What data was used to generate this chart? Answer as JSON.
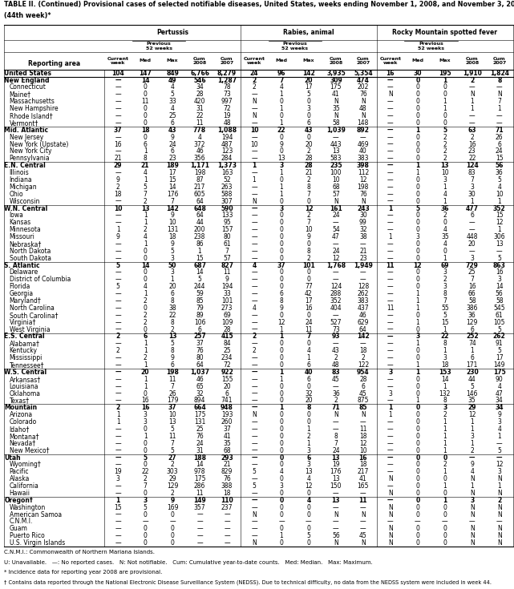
{
  "title_line1": "TABLE II. (Continued) Provisional cases of selected notifiable diseases, United States, weeks ending November 1, 2008, and November 3, 2007",
  "title_line2": "(44th week)*",
  "diseases": [
    "Pertussis",
    "Rabies, animal",
    "Rocky Mountain spotted fever"
  ],
  "rows": [
    [
      "United States",
      "104",
      "147",
      "849",
      "6,766",
      "8,279",
      "24",
      "96",
      "142",
      "3,935",
      "5,354",
      "16",
      "30",
      "195",
      "1,910",
      "1,824"
    ],
    [
      "New England",
      "—",
      "14",
      "49",
      "546",
      "1,287",
      "2",
      "7",
      "20",
      "309",
      "474",
      "—",
      "0",
      "1",
      "2",
      "8"
    ],
    [
      "Connecticut",
      "—",
      "0",
      "4",
      "34",
      "78",
      "2",
      "4",
      "17",
      "175",
      "202",
      "—",
      "0",
      "0",
      "—",
      "—"
    ],
    [
      "Maine†",
      "—",
      "0",
      "5",
      "28",
      "73",
      "—",
      "1",
      "5",
      "41",
      "76",
      "N",
      "0",
      "0",
      "N",
      "N"
    ],
    [
      "Massachusetts",
      "—",
      "11",
      "33",
      "420",
      "997",
      "N",
      "0",
      "0",
      "N",
      "N",
      "—",
      "0",
      "1",
      "1",
      "7"
    ],
    [
      "New Hampshire",
      "—",
      "0",
      "4",
      "31",
      "72",
      "—",
      "1",
      "3",
      "35",
      "48",
      "—",
      "0",
      "1",
      "1",
      "1"
    ],
    [
      "Rhode Island†",
      "—",
      "0",
      "25",
      "22",
      "19",
      "N",
      "0",
      "0",
      "N",
      "N",
      "—",
      "0",
      "0",
      "—",
      "—"
    ],
    [
      "Vermont†",
      "—",
      "0",
      "6",
      "11",
      "48",
      "—",
      "1",
      "6",
      "58",
      "148",
      "—",
      "0",
      "0",
      "—",
      "—"
    ],
    [
      "Mid. Atlantic",
      "37",
      "18",
      "43",
      "778",
      "1,088",
      "10",
      "22",
      "43",
      "1,039",
      "892",
      "—",
      "1",
      "5",
      "63",
      "71"
    ],
    [
      "New Jersey",
      "—",
      "0",
      "9",
      "4",
      "194",
      "—",
      "0",
      "0",
      "—",
      "—",
      "—",
      "0",
      "2",
      "2",
      "26"
    ],
    [
      "New York (Upstate)",
      "16",
      "6",
      "24",
      "372",
      "487",
      "10",
      "9",
      "20",
      "443",
      "469",
      "—",
      "0",
      "2",
      "16",
      "6"
    ],
    [
      "New York City",
      "—",
      "1",
      "6",
      "46",
      "123",
      "—",
      "0",
      "2",
      "13",
      "40",
      "—",
      "0",
      "2",
      "23",
      "24"
    ],
    [
      "Pennsylvania",
      "21",
      "8",
      "23",
      "356",
      "284",
      "—",
      "13",
      "28",
      "583",
      "383",
      "—",
      "0",
      "2",
      "22",
      "15"
    ],
    [
      "E.N. Central",
      "29",
      "21",
      "189",
      "1,171",
      "1,373",
      "1",
      "3",
      "28",
      "235",
      "398",
      "—",
      "1",
      "13",
      "124",
      "56"
    ],
    [
      "Illinois",
      "—",
      "4",
      "17",
      "198",
      "163",
      "—",
      "1",
      "21",
      "100",
      "112",
      "—",
      "1",
      "10",
      "83",
      "36"
    ],
    [
      "Indiana",
      "9",
      "1",
      "15",
      "87",
      "52",
      "1",
      "0",
      "2",
      "10",
      "12",
      "—",
      "0",
      "3",
      "7",
      "5"
    ],
    [
      "Michigan",
      "2",
      "5",
      "14",
      "217",
      "263",
      "—",
      "1",
      "8",
      "68",
      "198",
      "—",
      "0",
      "1",
      "3",
      "4"
    ],
    [
      "Ohio",
      "18",
      "7",
      "176",
      "605",
      "588",
      "—",
      "1",
      "7",
      "57",
      "76",
      "—",
      "0",
      "4",
      "30",
      "10"
    ],
    [
      "Wisconsin",
      "—",
      "2",
      "7",
      "64",
      "307",
      "N",
      "0",
      "0",
      "N",
      "N",
      "—",
      "0",
      "1",
      "1",
      "1"
    ],
    [
      "W.N. Central",
      "10",
      "13",
      "142",
      "648",
      "590",
      "—",
      "3",
      "12",
      "161",
      "243",
      "1",
      "5",
      "36",
      "477",
      "352"
    ],
    [
      "Iowa",
      "—",
      "1",
      "9",
      "64",
      "133",
      "—",
      "0",
      "2",
      "24",
      "30",
      "—",
      "0",
      "2",
      "6",
      "15"
    ],
    [
      "Kansas",
      "—",
      "1",
      "10",
      "44",
      "95",
      "—",
      "0",
      "7",
      "—",
      "99",
      "—",
      "0",
      "0",
      "—",
      "12"
    ],
    [
      "Minnesota",
      "1",
      "2",
      "131",
      "200",
      "157",
      "—",
      "0",
      "10",
      "54",
      "32",
      "—",
      "0",
      "4",
      "—",
      "1"
    ],
    [
      "Missouri",
      "9",
      "4",
      "18",
      "238",
      "80",
      "—",
      "0",
      "9",
      "47",
      "38",
      "1",
      "3",
      "35",
      "448",
      "306"
    ],
    [
      "Nebraska†",
      "—",
      "1",
      "9",
      "86",
      "61",
      "—",
      "0",
      "0",
      "—",
      "—",
      "—",
      "0",
      "4",
      "20",
      "13"
    ],
    [
      "North Dakota",
      "—",
      "0",
      "5",
      "1",
      "7",
      "—",
      "0",
      "8",
      "24",
      "21",
      "—",
      "0",
      "0",
      "—",
      "—"
    ],
    [
      "South Dakota",
      "—",
      "0",
      "3",
      "15",
      "57",
      "—",
      "0",
      "2",
      "12",
      "23",
      "—",
      "0",
      "1",
      "3",
      "5"
    ],
    [
      "S. Atlantic",
      "5",
      "14",
      "50",
      "687",
      "827",
      "4",
      "37",
      "101",
      "1,768",
      "1,949",
      "11",
      "12",
      "69",
      "729",
      "863"
    ],
    [
      "Delaware",
      "—",
      "0",
      "3",
      "14",
      "11",
      "—",
      "0",
      "0",
      "—",
      "—",
      "—",
      "0",
      "3",
      "25",
      "16"
    ],
    [
      "District of Columbia",
      "—",
      "0",
      "1",
      "5",
      "9",
      "—",
      "0",
      "0",
      "—",
      "—",
      "—",
      "0",
      "2",
      "7",
      "3"
    ],
    [
      "Florida",
      "5",
      "4",
      "20",
      "244",
      "194",
      "—",
      "0",
      "77",
      "124",
      "128",
      "—",
      "0",
      "3",
      "16",
      "14"
    ],
    [
      "Georgia",
      "—",
      "1",
      "6",
      "59",
      "33",
      "—",
      "6",
      "42",
      "288",
      "262",
      "—",
      "1",
      "8",
      "66",
      "56"
    ],
    [
      "Maryland†",
      "—",
      "2",
      "8",
      "85",
      "101",
      "—",
      "8",
      "17",
      "352",
      "383",
      "—",
      "1",
      "7",
      "58",
      "58"
    ],
    [
      "North Carolina",
      "—",
      "0",
      "38",
      "79",
      "273",
      "4",
      "9",
      "16",
      "404",
      "437",
      "11",
      "1",
      "55",
      "386",
      "545"
    ],
    [
      "South Carolina†",
      "—",
      "2",
      "22",
      "89",
      "69",
      "—",
      "0",
      "0",
      "—",
      "46",
      "—",
      "0",
      "5",
      "36",
      "61"
    ],
    [
      "Virginia†",
      "—",
      "2",
      "8",
      "106",
      "109",
      "—",
      "12",
      "24",
      "527",
      "629",
      "—",
      "1",
      "15",
      "129",
      "105"
    ],
    [
      "West Virginia",
      "—",
      "0",
      "2",
      "6",
      "28",
      "—",
      "1",
      "11",
      "73",
      "64",
      "—",
      "0",
      "1",
      "6",
      "5"
    ],
    [
      "E.S. Central",
      "2",
      "6",
      "13",
      "257",
      "415",
      "2",
      "1",
      "7",
      "93",
      "142",
      "—",
      "3",
      "22",
      "252",
      "262"
    ],
    [
      "Alabama†",
      "—",
      "1",
      "5",
      "37",
      "84",
      "—",
      "0",
      "0",
      "—",
      "—",
      "—",
      "1",
      "8",
      "74",
      "91"
    ],
    [
      "Kentucky",
      "2",
      "1",
      "8",
      "76",
      "25",
      "2",
      "0",
      "4",
      "43",
      "18",
      "—",
      "0",
      "1",
      "1",
      "5"
    ],
    [
      "Mississippi",
      "—",
      "2",
      "9",
      "80",
      "234",
      "—",
      "0",
      "1",
      "2",
      "2",
      "—",
      "0",
      "3",
      "6",
      "17"
    ],
    [
      "Tennessee†",
      "—",
      "1",
      "6",
      "64",
      "72",
      "—",
      "0",
      "6",
      "48",
      "122",
      "—",
      "1",
      "18",
      "171",
      "149"
    ],
    [
      "W.S. Central",
      "—",
      "20",
      "198",
      "1,037",
      "922",
      "—",
      "1",
      "40",
      "83",
      "954",
      "3",
      "1",
      "153",
      "230",
      "175"
    ],
    [
      "Arkansas†",
      "—",
      "1",
      "11",
      "46",
      "155",
      "—",
      "1",
      "6",
      "45",
      "28",
      "—",
      "0",
      "14",
      "44",
      "90"
    ],
    [
      "Louisiana",
      "—",
      "1",
      "7",
      "65",
      "20",
      "—",
      "0",
      "0",
      "—",
      "6",
      "—",
      "0",
      "1",
      "5",
      "4"
    ],
    [
      "Oklahoma",
      "—",
      "0",
      "26",
      "32",
      "6",
      "—",
      "0",
      "32",
      "36",
      "45",
      "3",
      "0",
      "132",
      "146",
      "47"
    ],
    [
      "Texas†",
      "—",
      "16",
      "179",
      "894",
      "741",
      "—",
      "0",
      "20",
      "2",
      "875",
      "—",
      "1",
      "8",
      "35",
      "34"
    ],
    [
      "Mountain",
      "2",
      "16",
      "37",
      "664",
      "948",
      "—",
      "1",
      "8",
      "71",
      "85",
      "1",
      "0",
      "3",
      "29",
      "34"
    ],
    [
      "Arizona",
      "1",
      "3",
      "10",
      "175",
      "193",
      "N",
      "0",
      "0",
      "N",
      "N",
      "1",
      "0",
      "2",
      "12",
      "9"
    ],
    [
      "Colorado",
      "1",
      "3",
      "13",
      "131",
      "260",
      "—",
      "0",
      "0",
      "—",
      "—",
      "—",
      "0",
      "1",
      "1",
      "3"
    ],
    [
      "Idaho†",
      "—",
      "0",
      "5",
      "25",
      "37",
      "—",
      "0",
      "1",
      "—",
      "11",
      "—",
      "0",
      "1",
      "1",
      "4"
    ],
    [
      "Montana†",
      "—",
      "1",
      "11",
      "76",
      "41",
      "—",
      "0",
      "2",
      "8",
      "18",
      "—",
      "0",
      "1",
      "3",
      "1"
    ],
    [
      "Nevada†",
      "—",
      "0",
      "7",
      "24",
      "35",
      "—",
      "0",
      "1",
      "7",
      "12",
      "—",
      "0",
      "1",
      "1",
      "—"
    ],
    [
      "New Mexico†",
      "—",
      "0",
      "5",
      "31",
      "68",
      "—",
      "0",
      "3",
      "24",
      "10",
      "—",
      "0",
      "1",
      "2",
      "5"
    ],
    [
      "Utah",
      "—",
      "5",
      "27",
      "188",
      "293",
      "—",
      "0",
      "6",
      "13",
      "16",
      "—",
      "0",
      "0",
      "—",
      "—"
    ],
    [
      "Wyoming†",
      "—",
      "0",
      "2",
      "14",
      "21",
      "—",
      "0",
      "3",
      "19",
      "18",
      "—",
      "0",
      "2",
      "9",
      "12"
    ],
    [
      "Pacific",
      "19",
      "22",
      "303",
      "978",
      "829",
      "5",
      "4",
      "13",
      "176",
      "217",
      "—",
      "0",
      "1",
      "4",
      "3"
    ],
    [
      "Alaska",
      "3",
      "2",
      "29",
      "175",
      "76",
      "—",
      "0",
      "4",
      "13",
      "41",
      "N",
      "0",
      "0",
      "N",
      "N"
    ],
    [
      "California",
      "—",
      "7",
      "129",
      "286",
      "388",
      "5",
      "3",
      "12",
      "150",
      "165",
      "—",
      "0",
      "1",
      "1",
      "1"
    ],
    [
      "Hawaii",
      "—",
      "0",
      "2",
      "11",
      "18",
      "—",
      "0",
      "0",
      "—",
      "—",
      "N",
      "0",
      "0",
      "N",
      "N"
    ],
    [
      "Oregon†",
      "1",
      "3",
      "9",
      "149",
      "110",
      "—",
      "0",
      "4",
      "13",
      "11",
      "—",
      "0",
      "1",
      "3",
      "2"
    ],
    [
      "Washington",
      "15",
      "5",
      "169",
      "357",
      "237",
      "—",
      "0",
      "0",
      "—",
      "—",
      "N",
      "0",
      "0",
      "N",
      "N"
    ],
    [
      "American Samoa",
      "—",
      "0",
      "0",
      "—",
      "—",
      "N",
      "0",
      "0",
      "N",
      "N",
      "N",
      "0",
      "0",
      "N",
      "N"
    ],
    [
      "C.N.M.I.",
      "—",
      "—",
      "—",
      "—",
      "—",
      "—",
      "—",
      "—",
      "—",
      "—",
      "—",
      "—",
      "—",
      "—",
      "—"
    ],
    [
      "Guam",
      "—",
      "0",
      "0",
      "—",
      "—",
      "—",
      "0",
      "0",
      "—",
      "—",
      "N",
      "0",
      "0",
      "N",
      "N"
    ],
    [
      "Puerto Rico",
      "—",
      "0",
      "0",
      "—",
      "—",
      "—",
      "1",
      "5",
      "56",
      "45",
      "N",
      "0",
      "0",
      "N",
      "N"
    ],
    [
      "U.S. Virgin Islands",
      "—",
      "0",
      "0",
      "—",
      "—",
      "N",
      "0",
      "0",
      "N",
      "N",
      "N",
      "0",
      "0",
      "N",
      "N"
    ]
  ],
  "bold_rows": [
    0,
    1,
    8,
    13,
    19,
    27,
    37,
    42,
    47,
    54,
    60
  ],
  "footnotes": [
    "C.N.M.I.: Commonwealth of Northern Mariana Islands.",
    "U: Unavailable.   —: No reported cases.   N: Not notifiable.   Cum: Cumulative year-to-date counts.   Med: Median.   Max: Maximum.",
    "* Incidence data for reporting year 2008 are provisional.",
    "† Contains data reported through the National Electronic Disease Surveillance System (NEDSS). Due to technical difficulty, no data from the NEDSS system were included in week 44."
  ]
}
